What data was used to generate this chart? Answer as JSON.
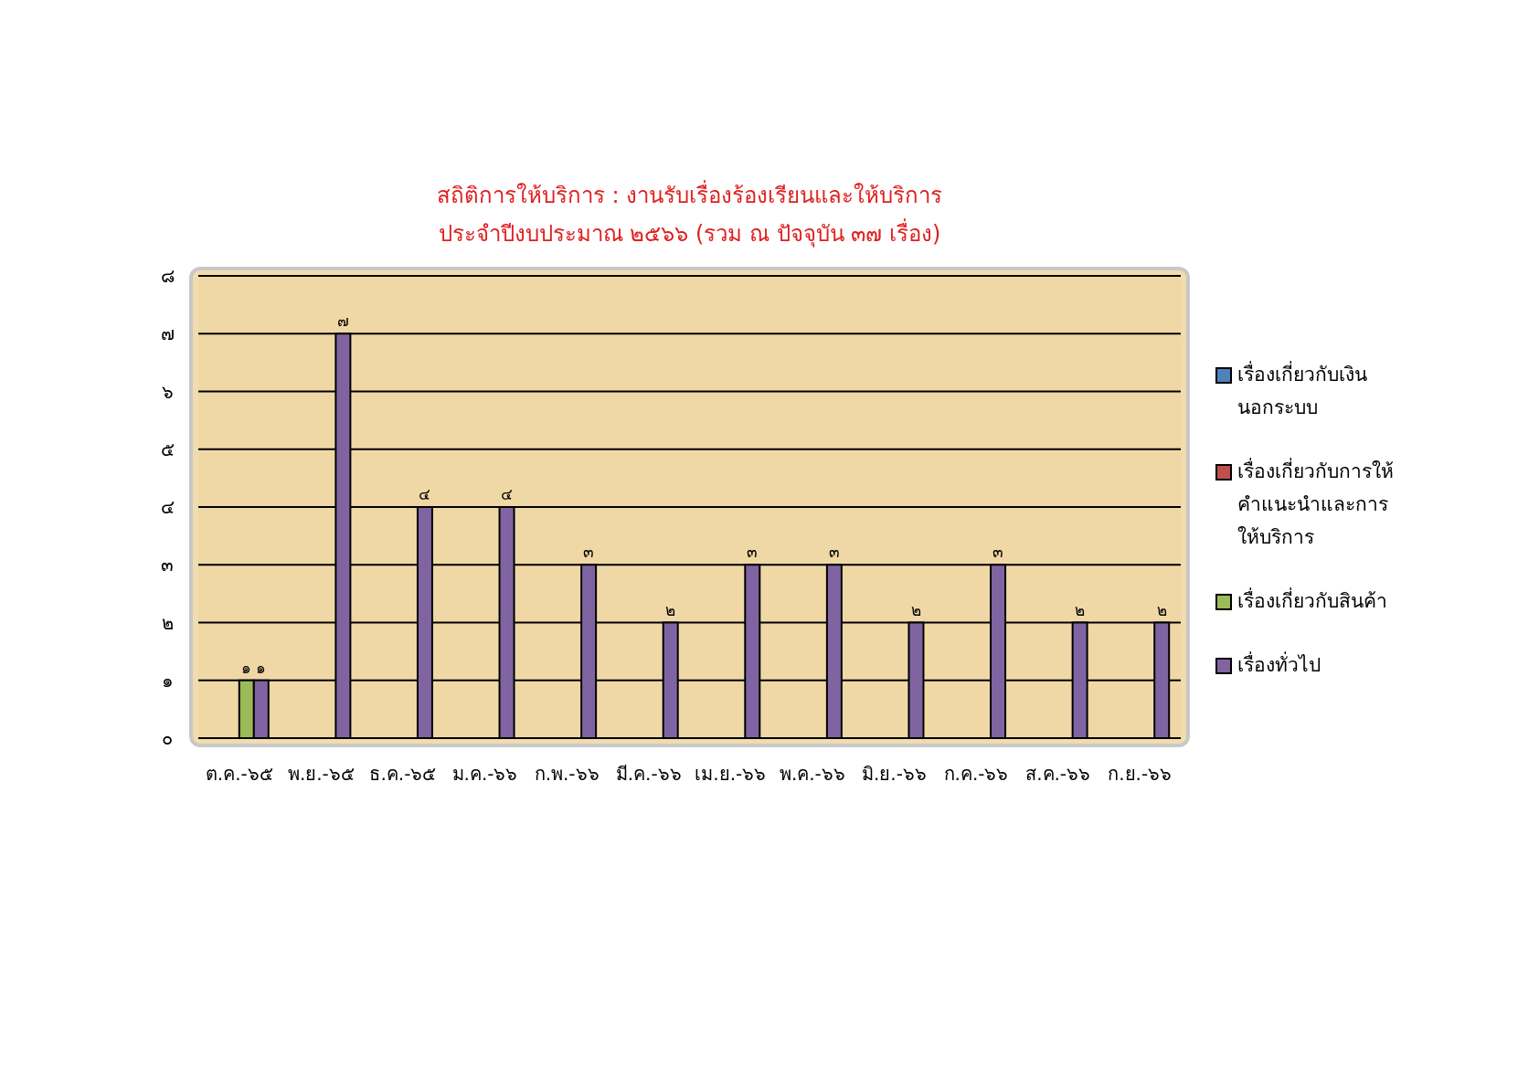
{
  "chart_data": {
    "type": "bar",
    "title": "สถิติการให้บริการ  :  งานรับเรื่องร้องเรียนและให้บริการ",
    "subtitle": "ประจำปีงบประมาณ ๒๕๖๖ (รวม ณ ปัจจุบัน ๓๗ เรื่อง)",
    "categories": [
      "ต.ค.-๖๕",
      "พ.ย.-๖๕",
      "ธ.ค.-๖๕",
      "ม.ค.-๖๖",
      "ก.พ.-๖๖",
      "มี.ค.-๖๖",
      "เม.ย.-๖๖",
      "พ.ค.-๖๖",
      "มิ.ย.-๖๖",
      "ก.ค.-๖๖",
      "ส.ค.-๖๖",
      "ก.ย.-๖๖"
    ],
    "series": [
      {
        "name": "เรื่องเกี่ยวกับเงินนอกระบบ",
        "color": "#4f81bd",
        "values": [
          null,
          null,
          null,
          null,
          null,
          null,
          null,
          null,
          null,
          null,
          null,
          null
        ]
      },
      {
        "name": "เรื่องเกี่ยวกับการให้คำแนะนำและการให้บริการ",
        "color": "#c0504d",
        "values": [
          null,
          null,
          null,
          null,
          null,
          null,
          null,
          null,
          null,
          null,
          null,
          null
        ]
      },
      {
        "name": "เรื่องเกี่ยวกับสินค้า",
        "color": "#9bbb59",
        "values": [
          1,
          null,
          null,
          null,
          null,
          null,
          null,
          null,
          null,
          null,
          null,
          null
        ],
        "value_labels": [
          "๑",
          null,
          null,
          null,
          null,
          null,
          null,
          null,
          null,
          null,
          null,
          null
        ]
      },
      {
        "name": "เรื่องทั่วไป",
        "color": "#8064a2",
        "values": [
          1,
          7,
          4,
          4,
          3,
          2,
          3,
          3,
          2,
          3,
          2,
          2
        ],
        "value_labels": [
          "๑",
          "๗",
          "๔",
          "๔",
          "๓",
          "๒",
          "๓",
          "๓",
          "๒",
          "๓",
          "๒",
          "๒"
        ]
      }
    ],
    "ylim": [
      0,
      8
    ],
    "yticks": [
      {
        "value": 0,
        "label": "๐"
      },
      {
        "value": 1,
        "label": "๑"
      },
      {
        "value": 2,
        "label": "๒"
      },
      {
        "value": 3,
        "label": "๓"
      },
      {
        "value": 4,
        "label": "๔"
      },
      {
        "value": 5,
        "label": "๕"
      },
      {
        "value": 6,
        "label": "๖"
      },
      {
        "value": 7,
        "label": "๗"
      },
      {
        "value": 8,
        "label": "๘"
      }
    ],
    "grid": "y",
    "legend": "right"
  }
}
